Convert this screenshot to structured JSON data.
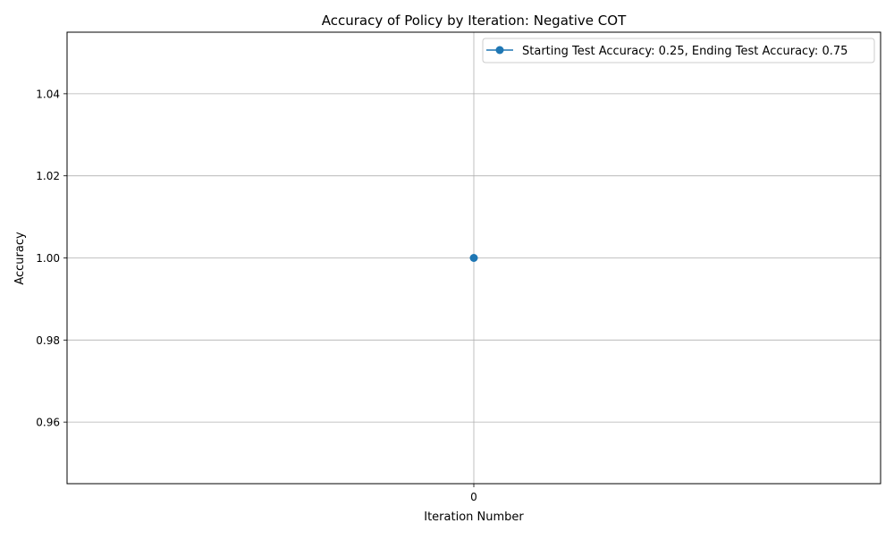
{
  "chart_data": {
    "type": "line",
    "title": "Accuracy of Policy by Iteration: Negative COT",
    "xlabel": "Iteration Number",
    "ylabel": "Accuracy",
    "x": [
      0
    ],
    "xlim": [
      -0.055,
      0.055
    ],
    "ylim": [
      0.945,
      1.055
    ],
    "x_ticks": [
      0
    ],
    "x_tick_labels": [
      "0"
    ],
    "y_ticks": [
      0.96,
      0.98,
      1.0,
      1.02,
      1.04
    ],
    "y_tick_labels": [
      "0.96",
      "0.98",
      "1.00",
      "1.02",
      "1.04"
    ],
    "grid": true,
    "legend_position": "top-right",
    "series": [
      {
        "name": "Starting Test Accuracy: 0.25, Ending Test Accuracy: 0.75",
        "values": [
          1.0
        ],
        "color": "#1f77b4",
        "marker": "circle"
      }
    ]
  }
}
